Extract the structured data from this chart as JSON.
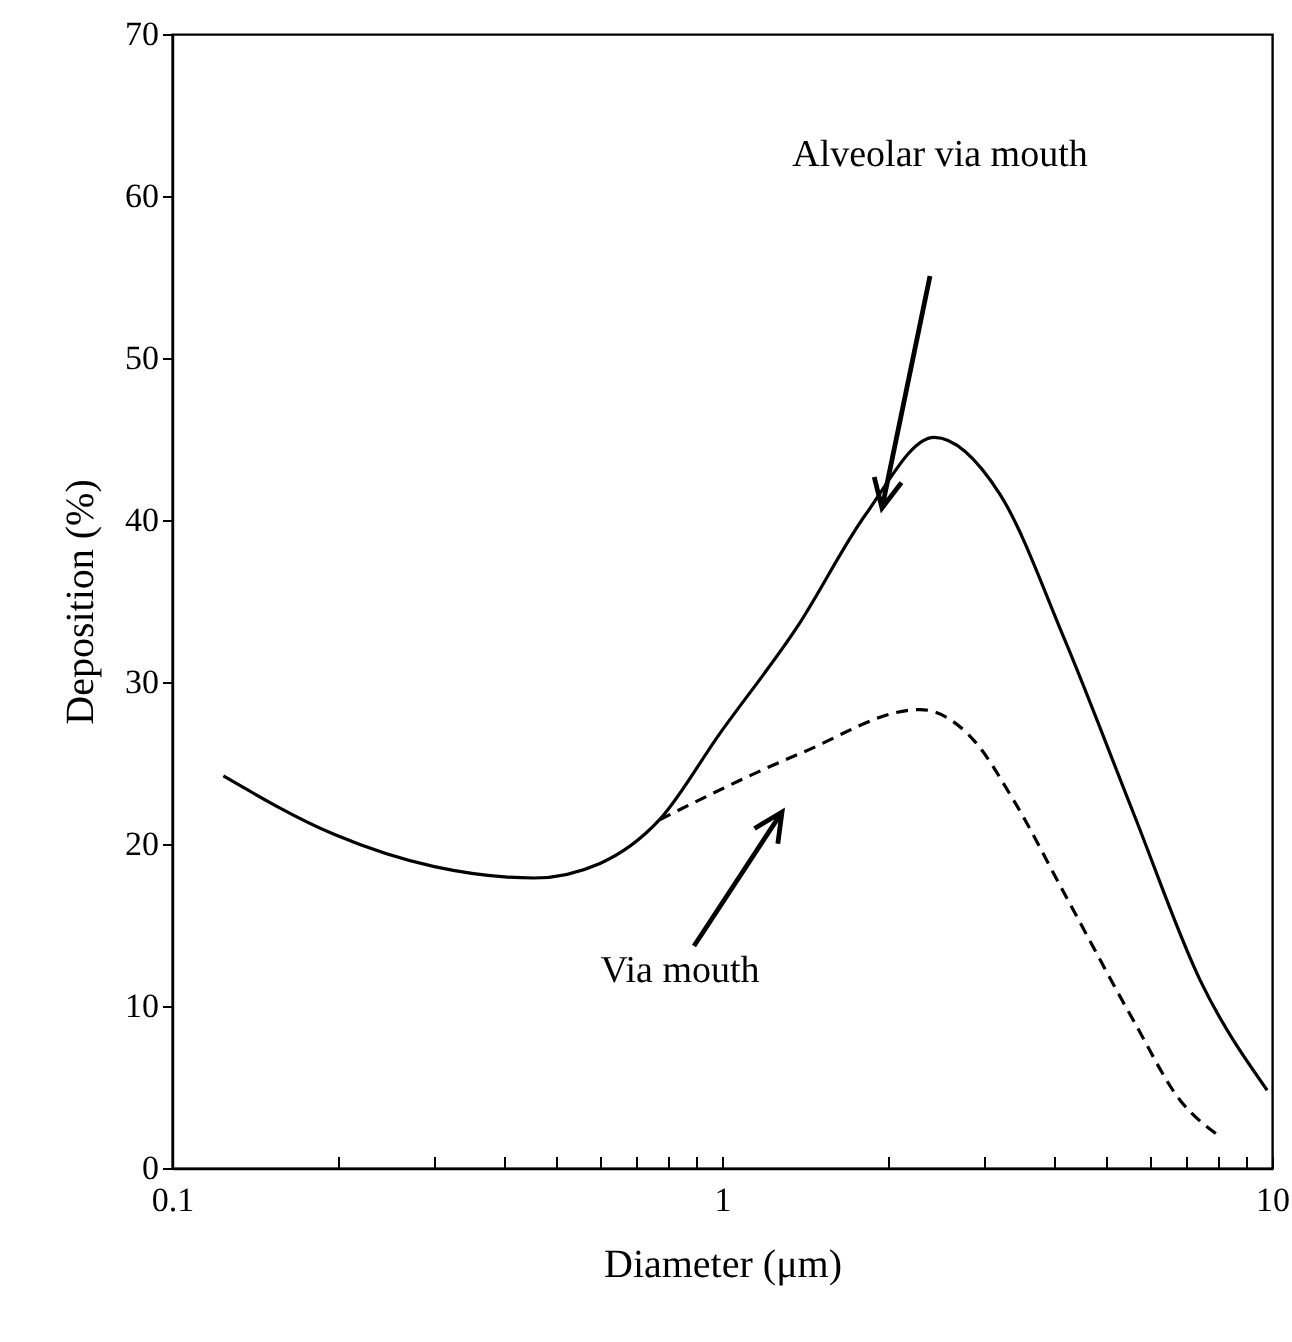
{
  "chart_data": {
    "type": "line",
    "xlabel": "Diameter (μm)",
    "ylabel": "Deposition (%)",
    "log": "x",
    "xlim": [
      0.1,
      10
    ],
    "xticks": [
      0.1,
      {
        "value": 0.2,
        "label": null
      },
      {
        "value": 0.3,
        "label": null
      },
      {
        "value": 0.4,
        "label": null
      },
      {
        "value": 0.5,
        "label": null
      },
      {
        "value": 0.6,
        "label": null
      },
      {
        "value": 0.7,
        "label": null
      },
      {
        "value": 0.8,
        "label": null
      },
      {
        "value": 0.9,
        "label": null
      },
      1,
      {
        "value": 2,
        "label": null
      },
      {
        "value": 3,
        "label": null
      },
      {
        "value": 4,
        "label": null
      },
      {
        "value": 5,
        "label": null
      },
      {
        "value": 6,
        "label": null
      },
      {
        "value": 7,
        "label": null
      },
      {
        "value": 8,
        "label": null
      },
      {
        "value": 9,
        "label": null
      },
      10
    ],
    "ylim": [
      0,
      70
    ],
    "yticks": [
      0,
      10,
      20,
      30,
      40,
      50,
      60,
      70
    ],
    "grid": false,
    "series": [
      {
        "color": "#000000",
        "line_style": "solid",
        "x": [
          0.124,
          0.197,
          0.3,
          0.455,
          0.6,
          0.77,
          0.99,
          1.37,
          1.83,
          2.43,
          3.2,
          4.2,
          5.6,
          7.4,
          9.8
        ],
        "values": [
          24.2,
          20.6,
          18.6,
          17.9,
          18.8,
          21.5,
          26.8,
          33.4,
          40.4,
          45.1,
          41.6,
          32.6,
          21.9,
          11.6,
          4.8
        ]
      },
      {
        "color": "#000000",
        "line_style": "dashed",
        "x": [
          0.77,
          1.39,
          2.29,
          2.87,
          3.39,
          4.2,
          5.6,
          6.8,
          8.0
        ],
        "values": [
          21.5,
          25.6,
          28.3,
          26.4,
          22.7,
          16.9,
          9.1,
          4.2,
          2.0
        ]
      }
    ],
    "annotations": [
      "Alveolar via mouth",
      "Via mouth"
    ]
  }
}
